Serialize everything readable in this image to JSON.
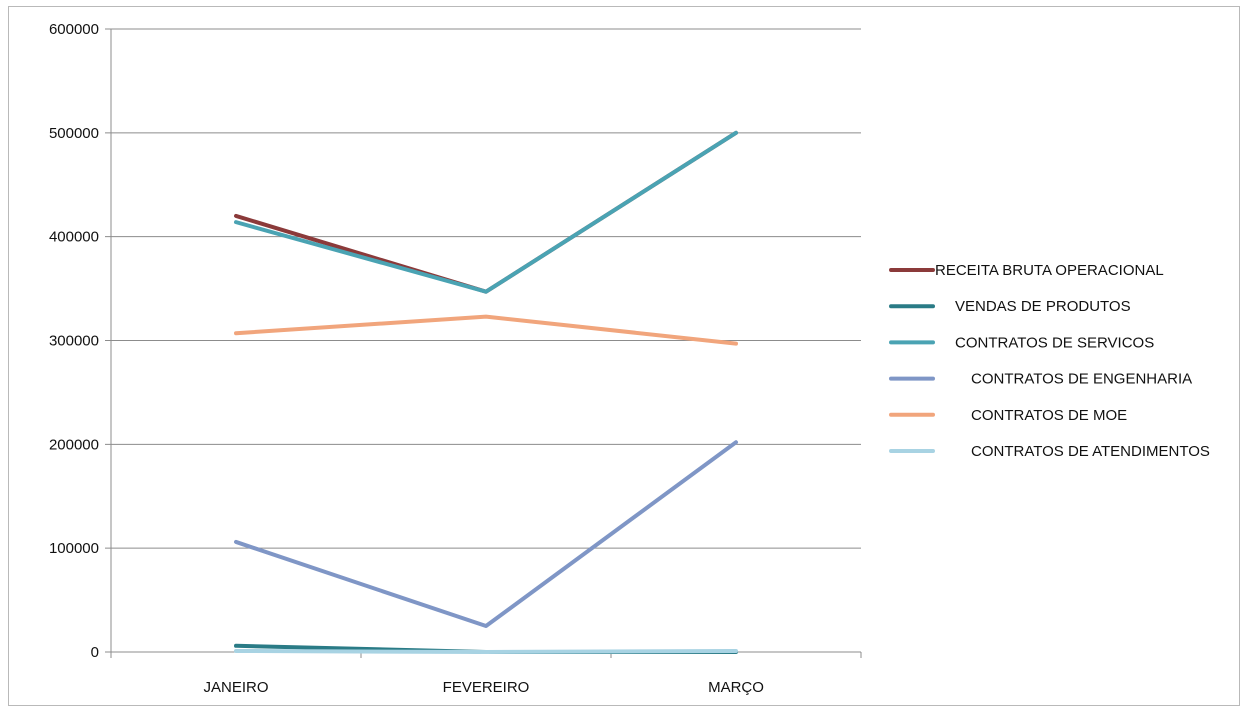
{
  "chart_data": {
    "type": "line",
    "categories": [
      "JANEIRO",
      "FEVEREIRO",
      "MARÇO"
    ],
    "ylim": [
      0,
      600000
    ],
    "yticks": [
      0,
      100000,
      200000,
      300000,
      400000,
      500000,
      600000
    ],
    "grid": true,
    "legend_position": "right",
    "series": [
      {
        "name": "RECEITA BRUTA OPERACIONAL",
        "color": "#8b3a3a",
        "values": [
          420000,
          347000,
          500000
        ]
      },
      {
        "name": "VENDAS DE PRODUTOS",
        "color": "#2a7b86",
        "values": [
          6000,
          0,
          0
        ]
      },
      {
        "name": "CONTRATOS DE SERVICOS",
        "color": "#4aa3b3",
        "values": [
          414000,
          347000,
          500000
        ]
      },
      {
        "name": "CONTRATOS DE ENGENHARIA",
        "color": "#7f96c6",
        "values": [
          106000,
          25000,
          202000
        ]
      },
      {
        "name": "CONTRATOS DE MOE",
        "color": "#f1a57c",
        "values": [
          307000,
          323000,
          297000
        ]
      },
      {
        "name": "CONTRATOS DE ATENDIMENTOS",
        "color": "#a8d3e3",
        "values": [
          1000,
          0,
          1000
        ]
      }
    ]
  }
}
